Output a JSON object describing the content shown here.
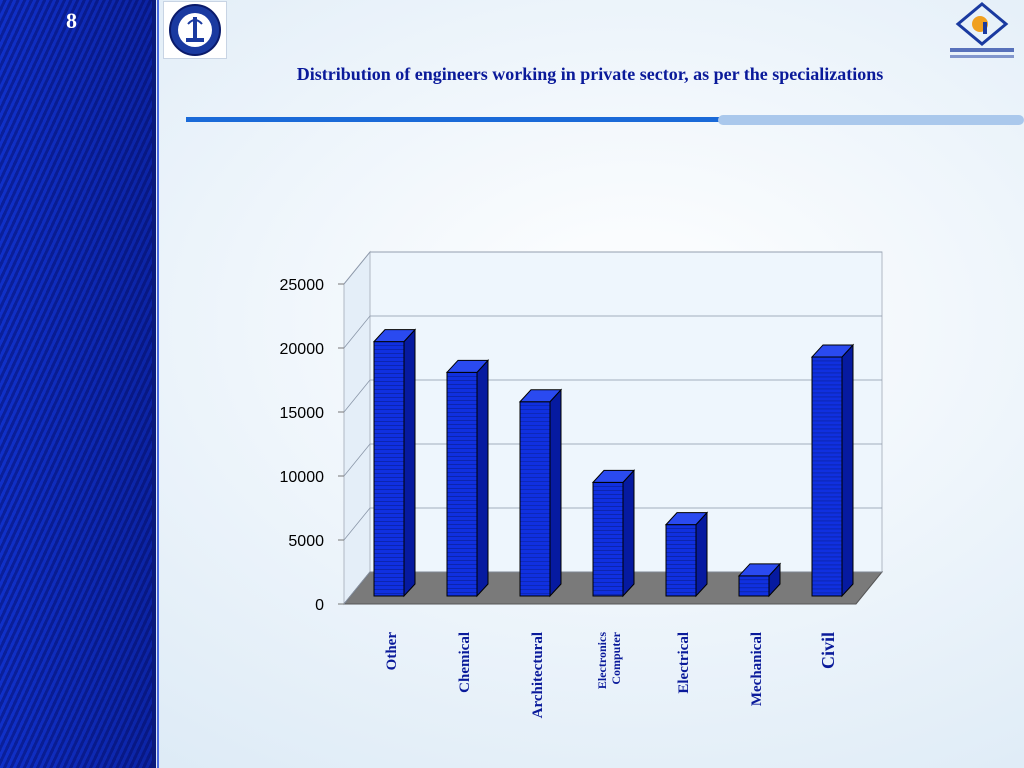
{
  "slide": {
    "number": "8"
  },
  "colors": {
    "bar_front": "#1030e0",
    "bar_dark": "#061aa0",
    "floor": "#7a7a7a",
    "title": "#0a1a9a"
  },
  "chart_data": {
    "type": "bar",
    "title": "Distribution of engineers working in private sector, as per the specializations",
    "categories": [
      {
        "lines": [
          "Other"
        ]
      },
      {
        "lines": [
          "Chemical"
        ]
      },
      {
        "lines": [
          "Architectural"
        ]
      },
      {
        "lines": [
          "Electronics",
          "Computer"
        ]
      },
      {
        "lines": [
          "Electrical"
        ]
      },
      {
        "lines": [
          "Mechanical"
        ]
      },
      {
        "lines": [
          "Civil"
        ]
      }
    ],
    "values": [
      20500,
      18100,
      15800,
      9500,
      6200,
      2200,
      19300
    ],
    "ylim": [
      0,
      25000
    ],
    "yticks": [
      "0",
      "5000",
      "10000",
      "15000",
      "20000",
      "25000"
    ],
    "grid": true,
    "three_d": true
  }
}
